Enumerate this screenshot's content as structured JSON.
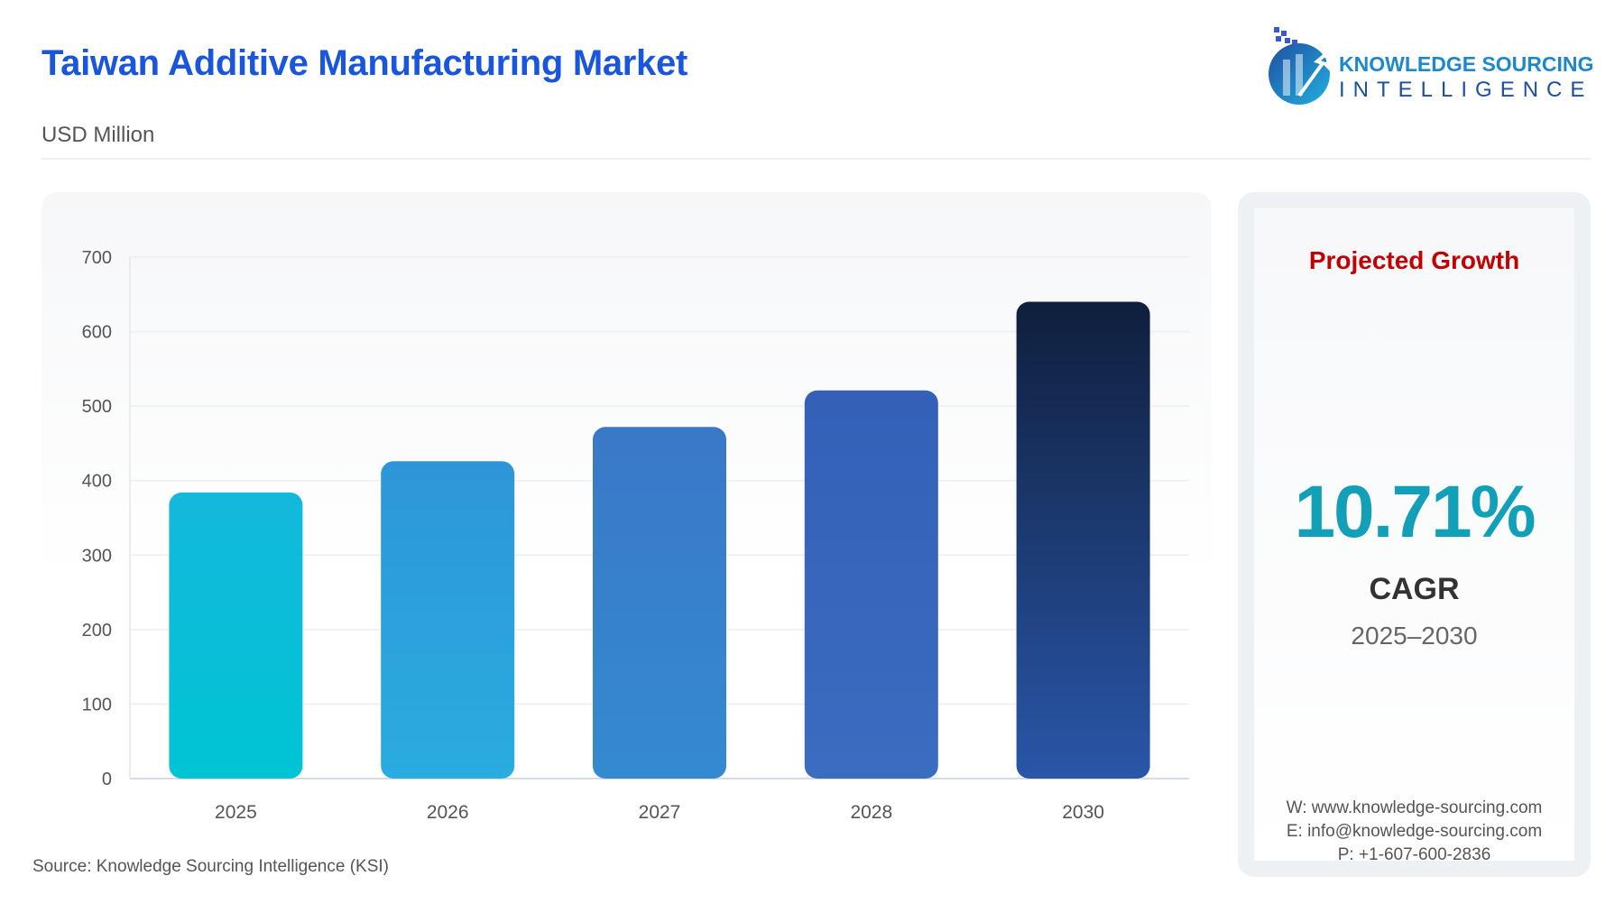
{
  "header": {
    "title": "Taiwan Additive Manufacturing Market",
    "unit": "USD Million"
  },
  "logo": {
    "line1": "KNOWLEDGE SOURCING",
    "line2": "INTELLIGENCE"
  },
  "chart_data": {
    "type": "bar",
    "categories": [
      "2025",
      "2026",
      "2027",
      "2028",
      "2030"
    ],
    "values": [
      384,
      426,
      472,
      521,
      640
    ],
    "ylim": [
      0,
      700
    ],
    "yticks": [
      0,
      100,
      200,
      300,
      400,
      500,
      600,
      700
    ],
    "grid": true,
    "colors": [
      "#00c4d4",
      "#2aa6dc",
      "#3a84cc",
      "#3a66bc",
      "#0f1f3d"
    ]
  },
  "card": {
    "heading": "Projected Growth",
    "value": "10.71%",
    "label": "CAGR",
    "period": "2025–2030",
    "web": "W: www.knowledge-sourcing.com",
    "email": "E: info@knowledge-sourcing.com",
    "phone": "P: +1-607-600-2836"
  },
  "source": "Source: Knowledge Sourcing Intelligence (KSI)"
}
